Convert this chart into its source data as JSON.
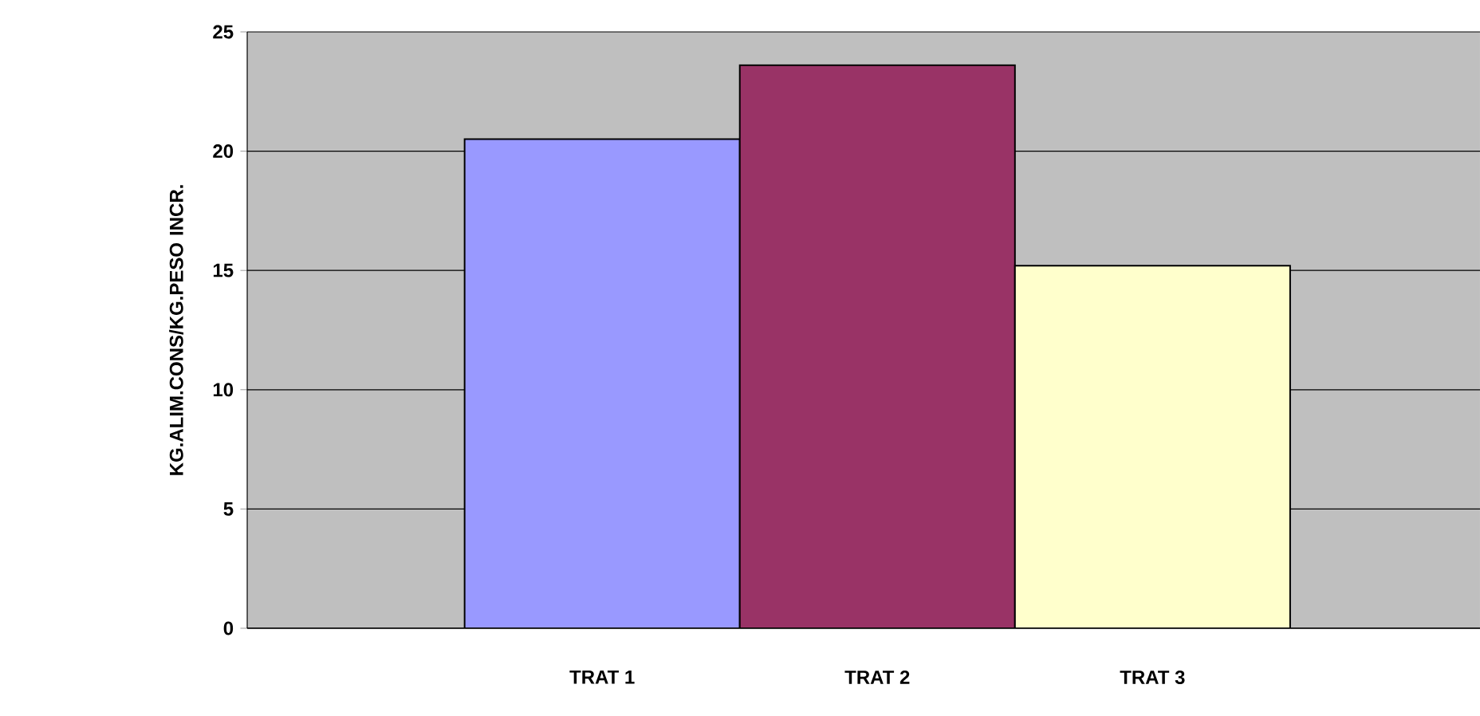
{
  "chart_data": {
    "type": "bar",
    "ylabel": "KG.ALIM.CONS/KG.PESO INCR.",
    "categories": [
      "TRAT 1",
      "TRAT 2",
      "TRAT 3"
    ],
    "values": [
      20.5,
      23.6,
      15.2
    ],
    "colors": [
      "#9999ff",
      "#993366",
      "#ffffcc"
    ],
    "ylim": [
      0,
      25
    ],
    "yticks": [
      0,
      5,
      10,
      15,
      20,
      25
    ],
    "grid": "y"
  }
}
